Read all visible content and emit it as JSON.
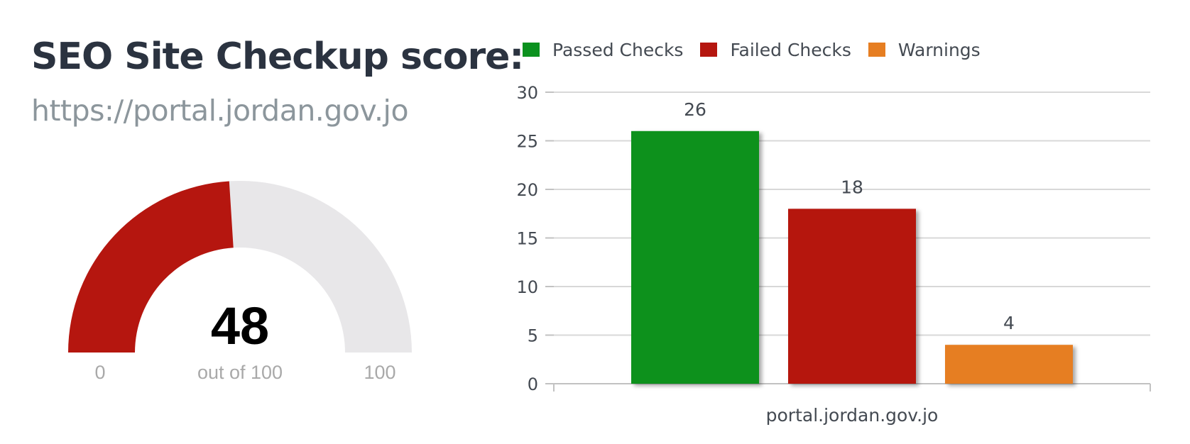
{
  "header": {
    "title": "SEO Site Checkup score:",
    "url": "https://portal.jordan.gov.jo"
  },
  "gauge": {
    "score": "48",
    "score_value": 48,
    "min_label": "0",
    "max_label": "100",
    "caption": "out of 100",
    "fill_color": "#b5160f",
    "track_color": "#e8e7e9"
  },
  "legend": {
    "items": [
      {
        "label": "Passed Checks",
        "color": "#0b911e"
      },
      {
        "label": "Failed Checks",
        "color": "#b5160f"
      },
      {
        "label": "Warnings",
        "color": "#e67e22"
      }
    ]
  },
  "chart_data": {
    "type": "bar",
    "categories": [
      "portal.jordan.gov.jo"
    ],
    "series": [
      {
        "name": "Passed Checks",
        "values": [
          26
        ],
        "color": "#0b911e"
      },
      {
        "name": "Failed Checks",
        "values": [
          18
        ],
        "color": "#b5160f"
      },
      {
        "name": "Warnings",
        "values": [
          4
        ],
        "color": "#e67e22"
      }
    ],
    "ylim": [
      0,
      30
    ],
    "yticks": [
      "0",
      "5",
      "10",
      "15",
      "20",
      "25",
      "30"
    ],
    "data_labels": [
      "26",
      "18",
      "4"
    ],
    "grid": true,
    "legend_position": "top"
  }
}
